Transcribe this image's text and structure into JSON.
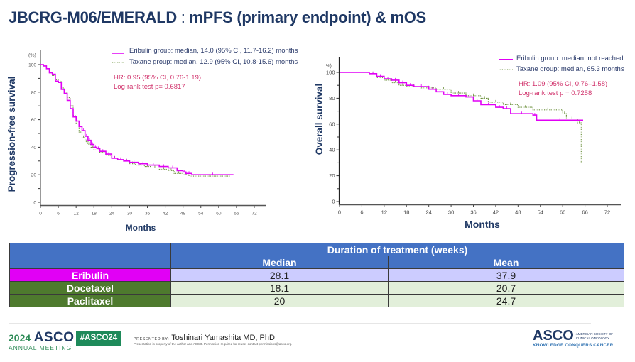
{
  "title": {
    "main": "JBCRG-M06/EMERALD",
    "sep": " : ",
    "sub": "mPFS (primary endpoint) & mOS"
  },
  "colors": {
    "eribulin": "#e100f5",
    "taxane": "#6a8f3a",
    "header": "#4472c4",
    "title": "#1f3864",
    "stats": "#d0306a"
  },
  "chart_data": [
    {
      "type": "line",
      "title": "Progression-free survival",
      "xlabel": "Months",
      "ylabel": "Progression-free survival",
      "yunit": "(%)",
      "xlim": [
        0,
        72
      ],
      "ylim": [
        0,
        100
      ],
      "xticks": [
        "0",
        "6",
        "12",
        "18",
        "24",
        "30",
        "36",
        "42",
        "48",
        "54",
        "60",
        "66",
        "72"
      ],
      "yticks": [
        "0",
        "20",
        "40",
        "60",
        "80",
        "100"
      ],
      "legend": [
        "Eribulin group: median, 14.0 (95% CI, 11.7-16.2) months",
        "Taxane group: median, 12.9 (95% CI, 10.8-15.6) months"
      ],
      "annotations": [
        "HR: 0.95 (95% CI, 0.76-1.19)",
        "Log-rank test p= 0.6817"
      ],
      "series": [
        {
          "name": "Eribulin",
          "style": "solid",
          "x": [
            0,
            1,
            2,
            3,
            4,
            5,
            6,
            7,
            8,
            9,
            10,
            11,
            12,
            13,
            14,
            15,
            16,
            17,
            18,
            19,
            20,
            22,
            24,
            26,
            28,
            30,
            33,
            36,
            40,
            43,
            46,
            48,
            49,
            51,
            65
          ],
          "y": [
            100,
            99,
            97,
            94,
            93,
            88,
            87,
            82,
            79,
            74,
            68,
            62,
            59,
            55,
            52,
            48,
            45,
            42,
            40,
            39,
            37,
            35,
            32,
            31,
            30,
            29,
            28,
            27,
            26,
            25,
            23,
            22,
            21,
            20,
            20
          ]
        },
        {
          "name": "Taxane",
          "style": "dotted",
          "x": [
            0,
            1,
            2,
            3,
            4,
            5,
            6,
            7,
            8,
            9,
            10,
            11,
            12,
            13,
            14,
            15,
            16,
            17,
            18,
            20,
            22,
            24,
            26,
            28,
            30,
            32,
            35,
            37,
            40,
            43,
            45,
            48,
            50,
            64
          ],
          "y": [
            100,
            99,
            97,
            94,
            92,
            89,
            88,
            83,
            80,
            76,
            70,
            63,
            57,
            51,
            47,
            44,
            42,
            40,
            38,
            36,
            34,
            32,
            31,
            30,
            28,
            27,
            26,
            25,
            24,
            23,
            21,
            20,
            19,
            19
          ]
        }
      ]
    },
    {
      "type": "line",
      "title": "Overall survival",
      "xlabel": "Months",
      "ylabel": "Overall survival",
      "yunit": "(%)",
      "xlim": [
        0,
        72
      ],
      "ylim": [
        0,
        100
      ],
      "xticks": [
        "0",
        "6",
        "12",
        "18",
        "24",
        "30",
        "36",
        "42",
        "48",
        "54",
        "60",
        "66",
        "72"
      ],
      "yticks": [
        "0",
        "20",
        "40",
        "60",
        "80",
        "100"
      ],
      "legend": [
        "Eribulin group: median, not reached",
        "Taxane group: median, 65.3 months"
      ],
      "annotations": [
        "HR: 1.09 (95% CI, 0.76–1.58)",
        "Log-rank test p = 0.7258"
      ],
      "series": [
        {
          "name": "Eribulin",
          "style": "solid",
          "x": [
            0,
            8,
            10,
            12,
            14,
            16,
            18,
            20,
            24,
            26,
            28,
            30,
            34,
            36,
            38,
            42,
            44,
            46,
            52,
            53,
            65.5
          ],
          "y": [
            100,
            99,
            97,
            95,
            94,
            92,
            90,
            89,
            87,
            85,
            83,
            82,
            81,
            78,
            75,
            73,
            72,
            68,
            67,
            63,
            63
          ]
        },
        {
          "name": "Taxane",
          "style": "dotted",
          "x": [
            0,
            8,
            10,
            12,
            14,
            16,
            18,
            22,
            26,
            30,
            34,
            38,
            40,
            44,
            48,
            52,
            60,
            61,
            64,
            65
          ],
          "y": [
            100,
            99,
            96,
            94,
            92,
            90,
            89,
            88,
            87,
            84,
            82,
            80,
            77,
            75,
            73,
            71,
            68,
            64,
            61,
            30
          ]
        }
      ]
    }
  ],
  "table": {
    "group_header": "Duration of treatment (weeks)",
    "columns": [
      "Median",
      "Mean"
    ],
    "rows": [
      {
        "label": "Eribulin",
        "median": "28.1",
        "mean": "37.9",
        "group": "eribulin"
      },
      {
        "label": "Docetaxel",
        "median": "18.1",
        "mean": "20.7",
        "group": "taxane"
      },
      {
        "label": "Paclitaxel",
        "median": "20",
        "mean": "24.7",
        "group": "taxane"
      }
    ]
  },
  "footer": {
    "year": "2024",
    "asco": "ASCO",
    "annual_meeting": "ANNUAL MEETING",
    "hashtag": "#ASCO24",
    "presented_by": "PRESENTED BY:",
    "presenter": "Toshinari Yamashita MD, PhD",
    "disclaimer": "Presentation is property of the author and ASCO. Permission required for reuse; contact permissions@asco.org.",
    "society_line1": "AMERICAN SOCIETY OF",
    "society_line2": "CLINICAL ONCOLOGY",
    "tagline": "KNOWLEDGE CONQUERS CANCER"
  }
}
